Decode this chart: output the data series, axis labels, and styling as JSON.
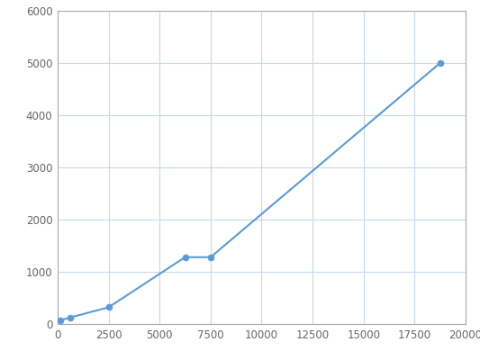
{
  "x": [
    156,
    625,
    2500,
    6250,
    7500,
    18750
  ],
  "y": [
    75,
    125,
    320,
    1280,
    1280,
    5000
  ],
  "line_color": "#5b9bd5",
  "marker_color": "#5b9bd5",
  "marker_size": 5,
  "line_width": 1.5,
  "xlim": [
    0,
    20000
  ],
  "ylim": [
    0,
    6000
  ],
  "xticks": [
    0,
    2500,
    5000,
    7500,
    10000,
    12500,
    15000,
    17500,
    20000
  ],
  "yticks": [
    0,
    1000,
    2000,
    3000,
    4000,
    5000,
    6000
  ],
  "grid_color": "#c8d8e8",
  "background_color": "#ffffff",
  "spine_color": "#aaaaaa",
  "tick_label_color": "#666666",
  "tick_fontsize": 8.5
}
